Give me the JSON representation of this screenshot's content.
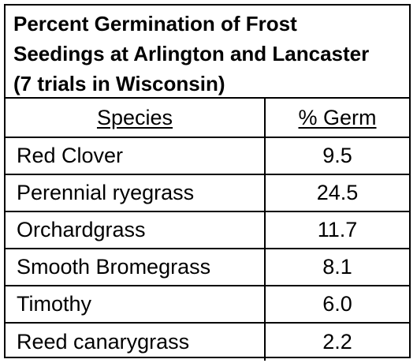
{
  "table": {
    "title": "Percent Germination of Frost Seedings at Arlington and Lancaster (7 trials in Wisconsin)",
    "title_lines": [
      "Percent Germination of Frost",
      "Seedings at Arlington and Lancaster",
      "(7 trials in Wisconsin)"
    ],
    "headers": {
      "species": "Species",
      "germ": "% Germ"
    },
    "rows": [
      {
        "species": "Red Clover",
        "germ": "9.5"
      },
      {
        "species": "Perennial ryegrass",
        "germ": "24.5"
      },
      {
        "species": "Orchardgrass",
        "germ": "11.7"
      },
      {
        "species": "Smooth Bromegrass",
        "germ": "8.1"
      },
      {
        "species": "Timothy",
        "germ": "6.0"
      },
      {
        "species": "Reed canarygrass",
        "germ": "2.2"
      }
    ]
  },
  "colors": {
    "text": "#000000",
    "border": "#000000",
    "background": "#ffffff"
  }
}
